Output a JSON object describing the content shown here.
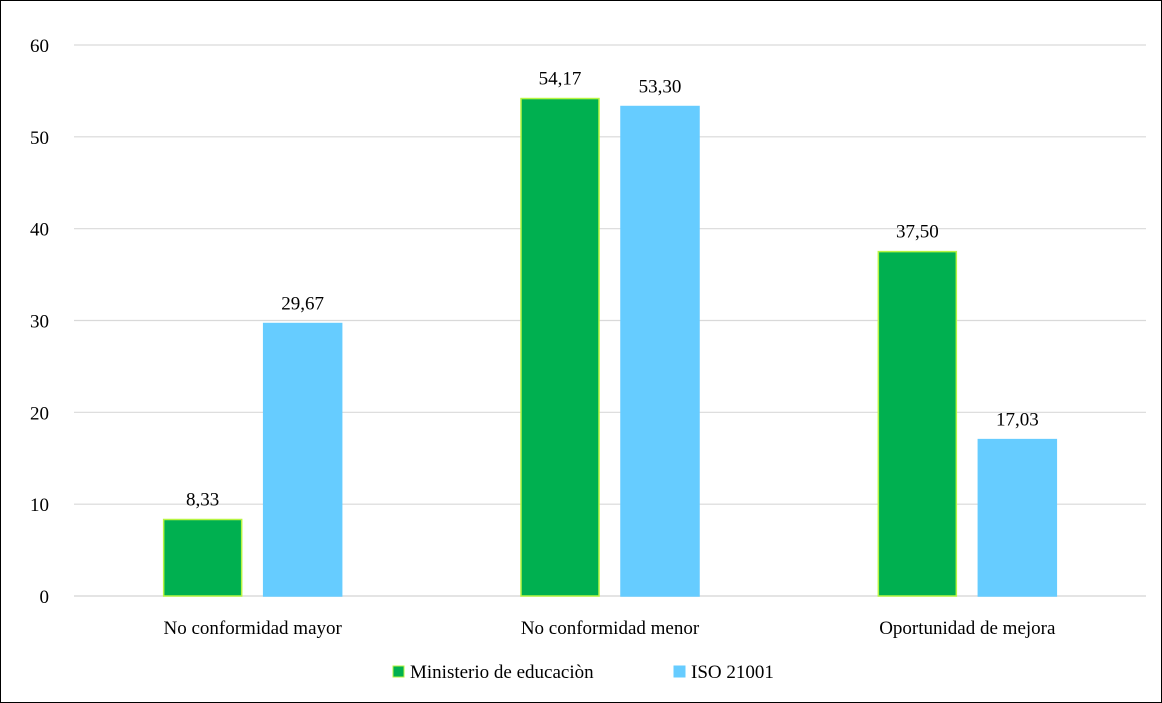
{
  "chart_data": {
    "type": "bar",
    "categories": [
      "No conformidad mayor",
      "No conformidad menor",
      "Oportunidad de mejora"
    ],
    "series": [
      {
        "name": "Ministerio de educaciòn",
        "values": [
          8.33,
          54.17,
          37.5
        ],
        "labels": [
          "8,33",
          "54,17",
          "37,50"
        ],
        "color": "#00b050",
        "border_color": "#b7f542"
      },
      {
        "name": "ISO 21001",
        "values": [
          29.67,
          53.3,
          17.03
        ],
        "labels": [
          "29,67",
          "53,30",
          "17,03"
        ],
        "color": "#66ccff",
        "border_color": "#66ccff"
      }
    ],
    "ylim": [
      0,
      60
    ],
    "yticks": [
      {
        "value": 0,
        "label": "0"
      },
      {
        "value": 10,
        "label": "10"
      },
      {
        "value": 20,
        "label": "20"
      },
      {
        "value": 30,
        "label": "30"
      },
      {
        "value": 40,
        "label": "40"
      },
      {
        "value": 50,
        "label": "50"
      },
      {
        "value": 60,
        "label": "60"
      }
    ],
    "grid": true,
    "grid_color": "#d9d9d9",
    "legend_position": "bottom-center"
  }
}
